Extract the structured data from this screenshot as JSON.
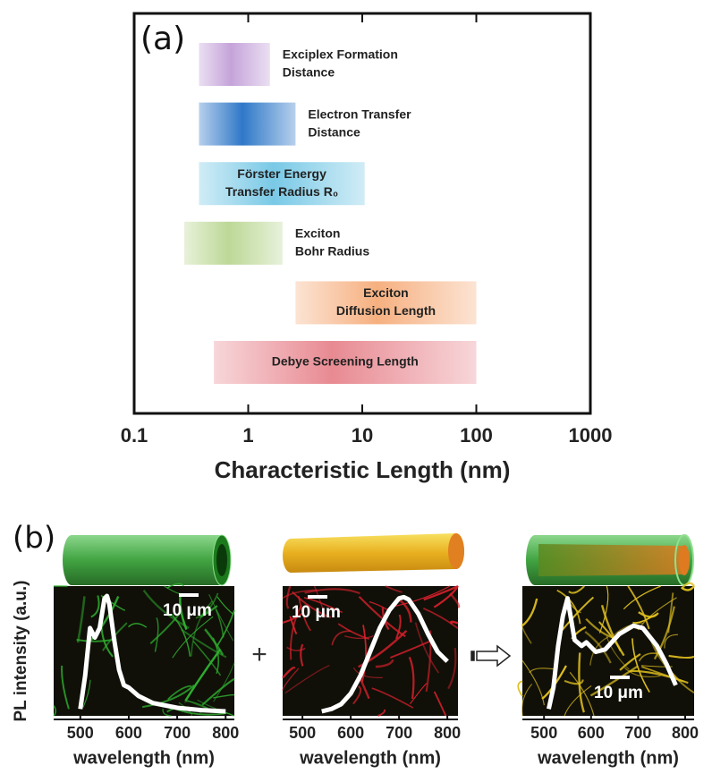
{
  "chart_data": [
    {
      "type": "range",
      "panel_label": "(a)",
      "xlabel": "Characteristic Length (nm)",
      "log_x": true,
      "xlim": [
        0.1,
        1000
      ],
      "xticks": [
        0.1,
        1,
        10,
        100,
        1000
      ],
      "series": [
        {
          "name": [
            "Exciplex Formation",
            "Distance"
          ],
          "color": "#c5a3da",
          "values": [
            0.37,
            1.55
          ]
        },
        {
          "name": [
            "Electron Transfer",
            "Distance"
          ],
          "color": "#2f78c8",
          "values": [
            0.37,
            2.6
          ]
        },
        {
          "name": [
            "Förster Energy",
            "Transfer Radius R₀"
          ],
          "color": "#79c9e6",
          "values": [
            0.37,
            10.5
          ]
        },
        {
          "name": [
            "Exciton",
            "Bohr Radius"
          ],
          "color": "#bcd896",
          "values": [
            0.275,
            2.0
          ]
        },
        {
          "name": [
            "Exciton",
            "Diffusion Length"
          ],
          "color": "#f6b080",
          "values": [
            2.6,
            100
          ]
        },
        {
          "name": [
            "Debye Screening Length"
          ],
          "color": "#e88a92",
          "values": [
            0.5,
            100
          ]
        }
      ]
    },
    {
      "type": "line",
      "panel_label": "(b)",
      "ylabel": "PL intensity (a.u.)",
      "xlabel": "wavelength (nm)",
      "annotation": "10 μm",
      "image_color": "#2fae2f",
      "color": "#ffffff",
      "xlim": [
        445,
        818
      ],
      "xticks": [
        500,
        600,
        700,
        800
      ],
      "ylim": [
        0,
        1
      ],
      "x": [
        500,
        510,
        520,
        530,
        540,
        550,
        555,
        560,
        570,
        580,
        590,
        600,
        620,
        650,
        700,
        750,
        800
      ],
      "values": [
        0.02,
        0.3,
        0.7,
        0.62,
        0.7,
        0.95,
        0.97,
        0.9,
        0.6,
        0.35,
        0.22,
        0.2,
        0.13,
        0.07,
        0.03,
        0.01,
        0
      ]
    },
    {
      "type": "line",
      "xlabel": "wavelength (nm)",
      "annotation": "10 μm",
      "image_color": "#d8202c",
      "color": "#ffffff",
      "xlim": [
        459,
        822
      ],
      "xticks": [
        500,
        600,
        700,
        800
      ],
      "ylim": [
        0,
        1
      ],
      "x": [
        540,
        560,
        580,
        600,
        620,
        640,
        660,
        680,
        700,
        710,
        720,
        740,
        760,
        780,
        800
      ],
      "values": [
        0,
        0.02,
        0.06,
        0.15,
        0.3,
        0.5,
        0.7,
        0.85,
        0.95,
        0.96,
        0.94,
        0.82,
        0.65,
        0.5,
        0.42
      ]
    },
    {
      "type": "line",
      "xlabel": "wavelength (nm)",
      "annotation": "10 μm",
      "image_color": "#e0c020",
      "color": "#ffffff",
      "xlim": [
        454,
        819
      ],
      "xticks": [
        500,
        600,
        700,
        800
      ],
      "ylim": [
        0,
        1
      ],
      "x": [
        510,
        520,
        530,
        540,
        550,
        565,
        580,
        590,
        610,
        630,
        660,
        690,
        710,
        740,
        760,
        780
      ],
      "values": [
        0.02,
        0.2,
        0.55,
        0.8,
        0.95,
        0.6,
        0.55,
        0.58,
        0.5,
        0.52,
        0.65,
        0.72,
        0.7,
        0.55,
        0.4,
        0.22
      ]
    }
  ]
}
